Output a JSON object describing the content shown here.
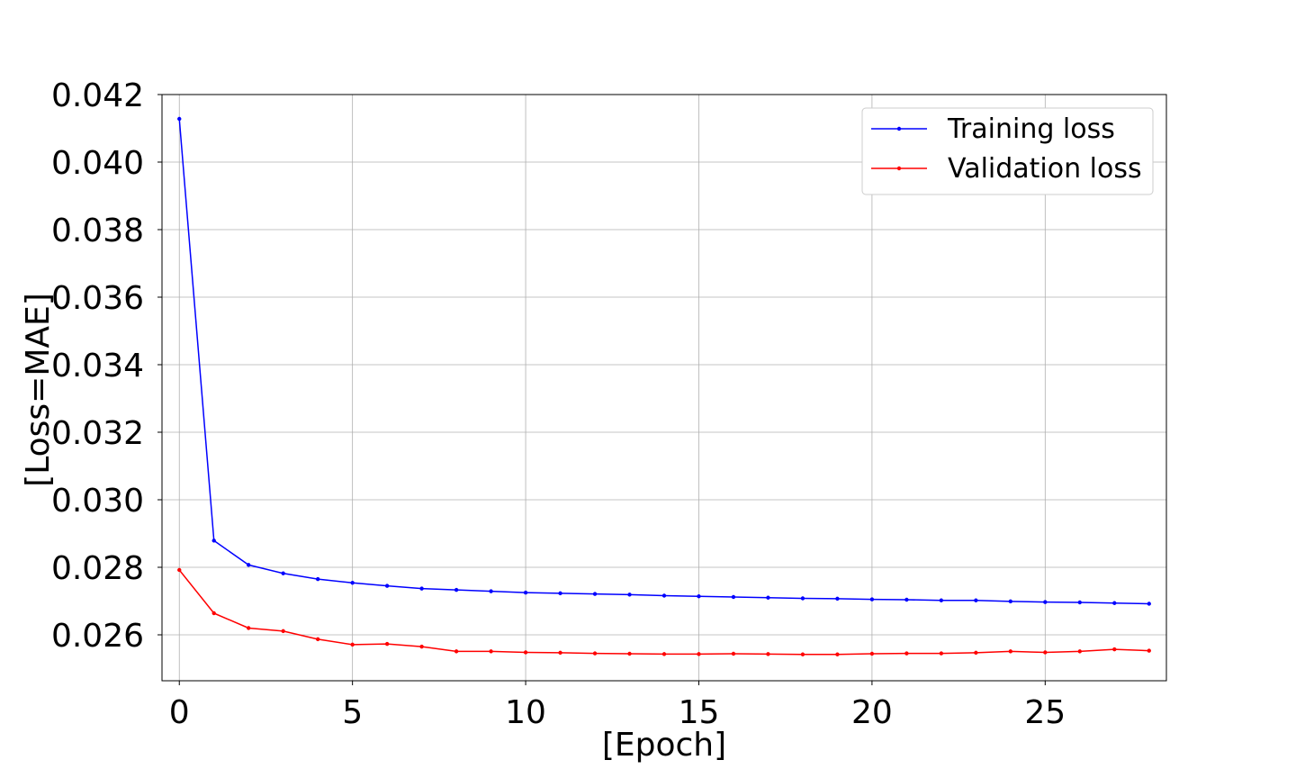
{
  "chart_data": {
    "type": "line",
    "title": "",
    "xlabel": "[Epoch]",
    "ylabel": "[Loss=MAE]",
    "xlim": [
      -0.5,
      28.5
    ],
    "ylim": [
      0.02464,
      0.042
    ],
    "xticks": [
      0,
      5,
      10,
      15,
      20,
      25
    ],
    "xtick_labels": [
      "0",
      "5",
      "10",
      "15",
      "20",
      "25"
    ],
    "yticks": [
      0.026,
      0.028,
      0.03,
      0.032,
      0.034,
      0.036,
      0.038,
      0.04,
      0.042
    ],
    "ytick_labels": [
      "0.026",
      "0.028",
      "0.030",
      "0.032",
      "0.034",
      "0.036",
      "0.038",
      "0.040",
      "0.042"
    ],
    "grid": true,
    "legend_position": "top-right",
    "x": [
      0,
      1,
      2,
      3,
      4,
      5,
      6,
      7,
      8,
      9,
      10,
      11,
      12,
      13,
      14,
      15,
      16,
      17,
      18,
      19,
      20,
      21,
      22,
      23,
      24,
      25,
      26,
      27,
      28
    ],
    "series": [
      {
        "name": "Training loss",
        "color": "#0000ff",
        "values": [
          0.04128,
          0.02879,
          0.02807,
          0.02782,
          0.02765,
          0.02754,
          0.02745,
          0.02737,
          0.02733,
          0.02729,
          0.02725,
          0.02723,
          0.02721,
          0.02719,
          0.02716,
          0.02714,
          0.02712,
          0.0271,
          0.02708,
          0.02707,
          0.02705,
          0.02704,
          0.02702,
          0.02702,
          0.02699,
          0.02697,
          0.02696,
          0.02694,
          0.02692
        ]
      },
      {
        "name": "Validation loss",
        "color": "#ff0000",
        "values": [
          0.02792,
          0.02664,
          0.0262,
          0.02611,
          0.02587,
          0.02571,
          0.02573,
          0.02565,
          0.02551,
          0.02551,
          0.02548,
          0.02547,
          0.02545,
          0.02544,
          0.02543,
          0.02543,
          0.02544,
          0.02543,
          0.02542,
          0.02542,
          0.02544,
          0.02545,
          0.02545,
          0.02547,
          0.02551,
          0.02548,
          0.02551,
          0.02557,
          0.02553
        ]
      }
    ]
  }
}
